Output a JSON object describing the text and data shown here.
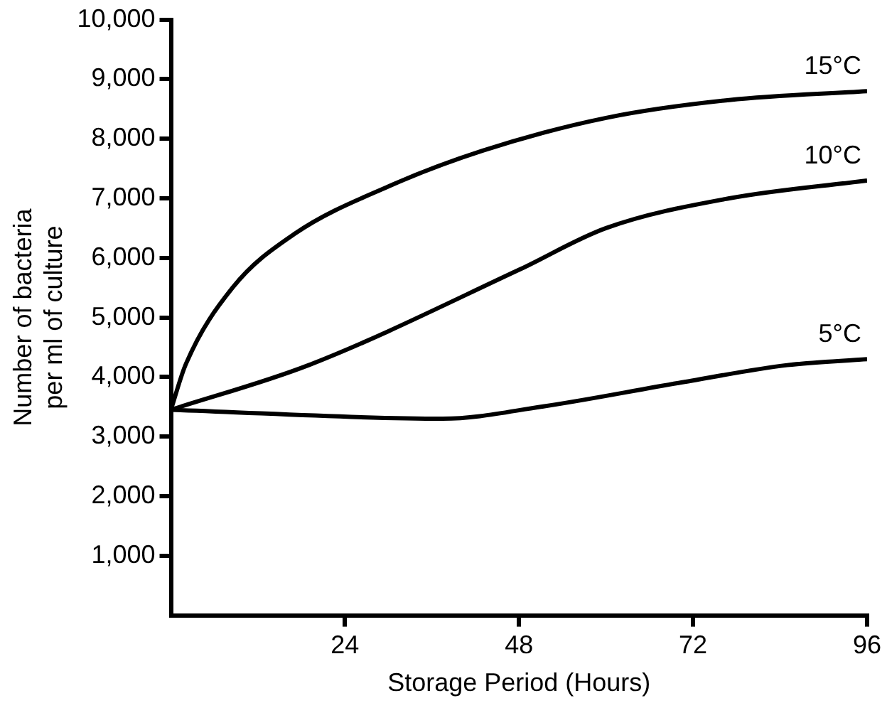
{
  "chart_data": {
    "type": "line",
    "xlabel": "Storage Period (Hours)",
    "ylabel": "Number of bacteria\nper ml of culture",
    "xlim": [
      0,
      96
    ],
    "xticks": [
      24,
      48,
      72,
      96
    ],
    "ylim": [
      0,
      10000
    ],
    "yticks": [
      {
        "value": 1000,
        "label": "1,000"
      },
      {
        "value": 2000,
        "label": "2,000"
      },
      {
        "value": 3000,
        "label": "3,000"
      },
      {
        "value": 4000,
        "label": "4,000"
      },
      {
        "value": 5000,
        "label": "5,000"
      },
      {
        "value": 6000,
        "label": "6,000"
      },
      {
        "value": 7000,
        "label": "7,000"
      },
      {
        "value": 8000,
        "label": "8,000"
      },
      {
        "value": 9000,
        "label": "9,000"
      },
      {
        "value": 10000,
        "label": "10,000"
      }
    ],
    "grid": false,
    "legend": false,
    "marker": "none",
    "line_style": "solid",
    "series": [
      {
        "name": "15°C",
        "color": "#000000",
        "x": [
          0,
          2,
          8.5,
          17,
          30,
          43,
          60,
          77,
          96
        ],
        "values": [
          3450,
          4200,
          5500,
          6400,
          7200,
          7800,
          8350,
          8650,
          8800
        ]
      },
      {
        "name": "10°C",
        "color": "#000000",
        "x": [
          0,
          19,
          48,
          60,
          77,
          96
        ],
        "values": [
          3450,
          4200,
          5800,
          6500,
          7000,
          7300
        ]
      },
      {
        "name": "5°C",
        "color": "#000000",
        "x": [
          0,
          37.5,
          51,
          70,
          85,
          96
        ],
        "values": [
          3450,
          3300,
          3500,
          3900,
          4200,
          4300
        ]
      }
    ]
  }
}
